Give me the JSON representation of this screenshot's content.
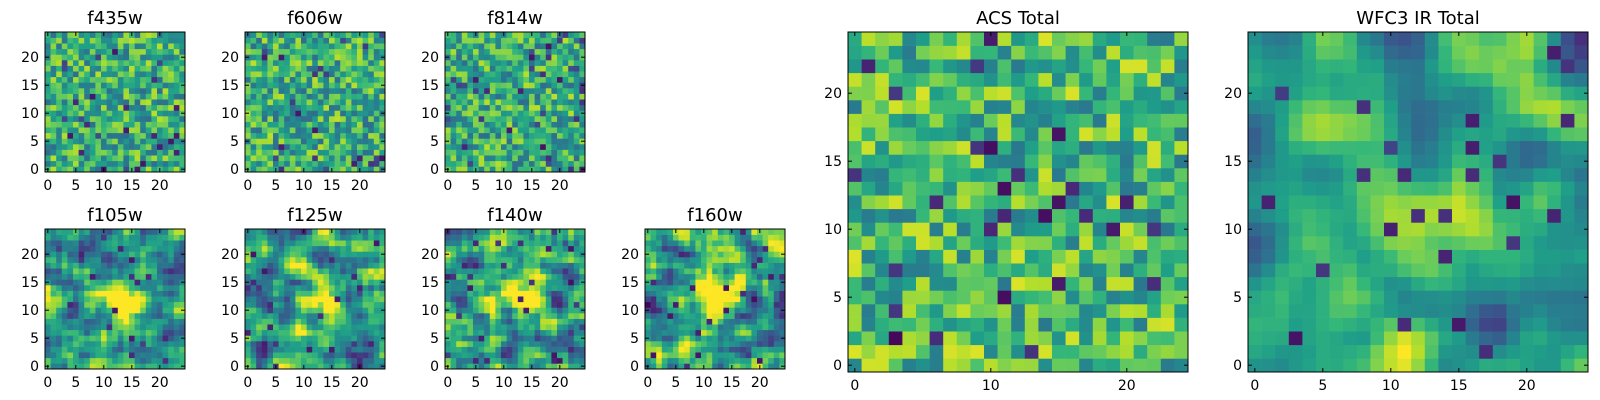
{
  "colors": {
    "viridis_dark": "#440154",
    "viridis_mid": "#21918c",
    "viridis_bright": "#fde725",
    "axis": "#000000"
  },
  "chart_data": [
    {
      "type": "heatmap",
      "title": "f435w",
      "size": 25,
      "xticks": [
        0,
        5,
        10,
        15,
        20
      ],
      "yticks": [
        0,
        5,
        10,
        15,
        20
      ],
      "xlim": [
        0,
        24
      ],
      "ylim": [
        0,
        24
      ],
      "colormap": "viridis",
      "pattern": "uniform noise",
      "values": []
    },
    {
      "type": "heatmap",
      "title": "f606w",
      "size": 25,
      "xticks": [
        0,
        5,
        10,
        15,
        20
      ],
      "yticks": [
        0,
        5,
        10,
        15,
        20
      ],
      "xlim": [
        0,
        24
      ],
      "ylim": [
        0,
        24
      ],
      "colormap": "viridis",
      "pattern": "uniform noise",
      "values": []
    },
    {
      "type": "heatmap",
      "title": "f814w",
      "size": 25,
      "xticks": [
        0,
        5,
        10,
        15,
        20
      ],
      "yticks": [
        0,
        5,
        10,
        15,
        20
      ],
      "xlim": [
        0,
        24
      ],
      "ylim": [
        0,
        24
      ],
      "colormap": "viridis",
      "pattern": "uniform noise",
      "values": []
    },
    {
      "type": "heatmap",
      "title": "f105w",
      "size": 25,
      "xticks": [
        0,
        5,
        10,
        15,
        20
      ],
      "yticks": [
        0,
        5,
        10,
        15,
        20
      ],
      "xlim": [
        0,
        24
      ],
      "ylim": [
        0,
        24
      ],
      "colormap": "viridis",
      "pattern": "central source, smooth",
      "values": []
    },
    {
      "type": "heatmap",
      "title": "f125w",
      "size": 25,
      "xticks": [
        0,
        5,
        10,
        15,
        20
      ],
      "yticks": [
        0,
        5,
        10,
        15,
        20
      ],
      "xlim": [
        0,
        24
      ],
      "ylim": [
        0,
        24
      ],
      "colormap": "viridis",
      "pattern": "central source, smooth",
      "values": []
    },
    {
      "type": "heatmap",
      "title": "f140w",
      "size": 25,
      "xticks": [
        0,
        5,
        10,
        15,
        20
      ],
      "yticks": [
        0,
        5,
        10,
        15,
        20
      ],
      "xlim": [
        0,
        24
      ],
      "ylim": [
        0,
        24
      ],
      "colormap": "viridis",
      "pattern": "central source, smooth",
      "values": []
    },
    {
      "type": "heatmap",
      "title": "f160w",
      "size": 25,
      "xticks": [
        0,
        5,
        10,
        15,
        20
      ],
      "yticks": [
        0,
        5,
        10,
        15,
        20
      ],
      "xlim": [
        0,
        24
      ],
      "ylim": [
        0,
        24
      ],
      "colormap": "viridis",
      "pattern": "central source, smooth",
      "values": []
    },
    {
      "type": "heatmap",
      "title": "ACS Total",
      "size": 25,
      "xticks": [
        0,
        10,
        20
      ],
      "yticks": [
        0,
        5,
        10,
        15,
        20
      ],
      "xlim": [
        0,
        24
      ],
      "ylim": [
        0,
        24
      ],
      "colormap": "viridis",
      "pattern": "noise",
      "values": []
    },
    {
      "type": "heatmap",
      "title": "WFC3 IR Total",
      "size": 25,
      "xticks": [
        0,
        5,
        10,
        15,
        20
      ],
      "yticks": [
        0,
        5,
        10,
        15,
        20
      ],
      "xlim": [
        0,
        24
      ],
      "ylim": [
        0,
        24
      ],
      "colormap": "viridis",
      "pattern": "central source",
      "values": []
    }
  ]
}
